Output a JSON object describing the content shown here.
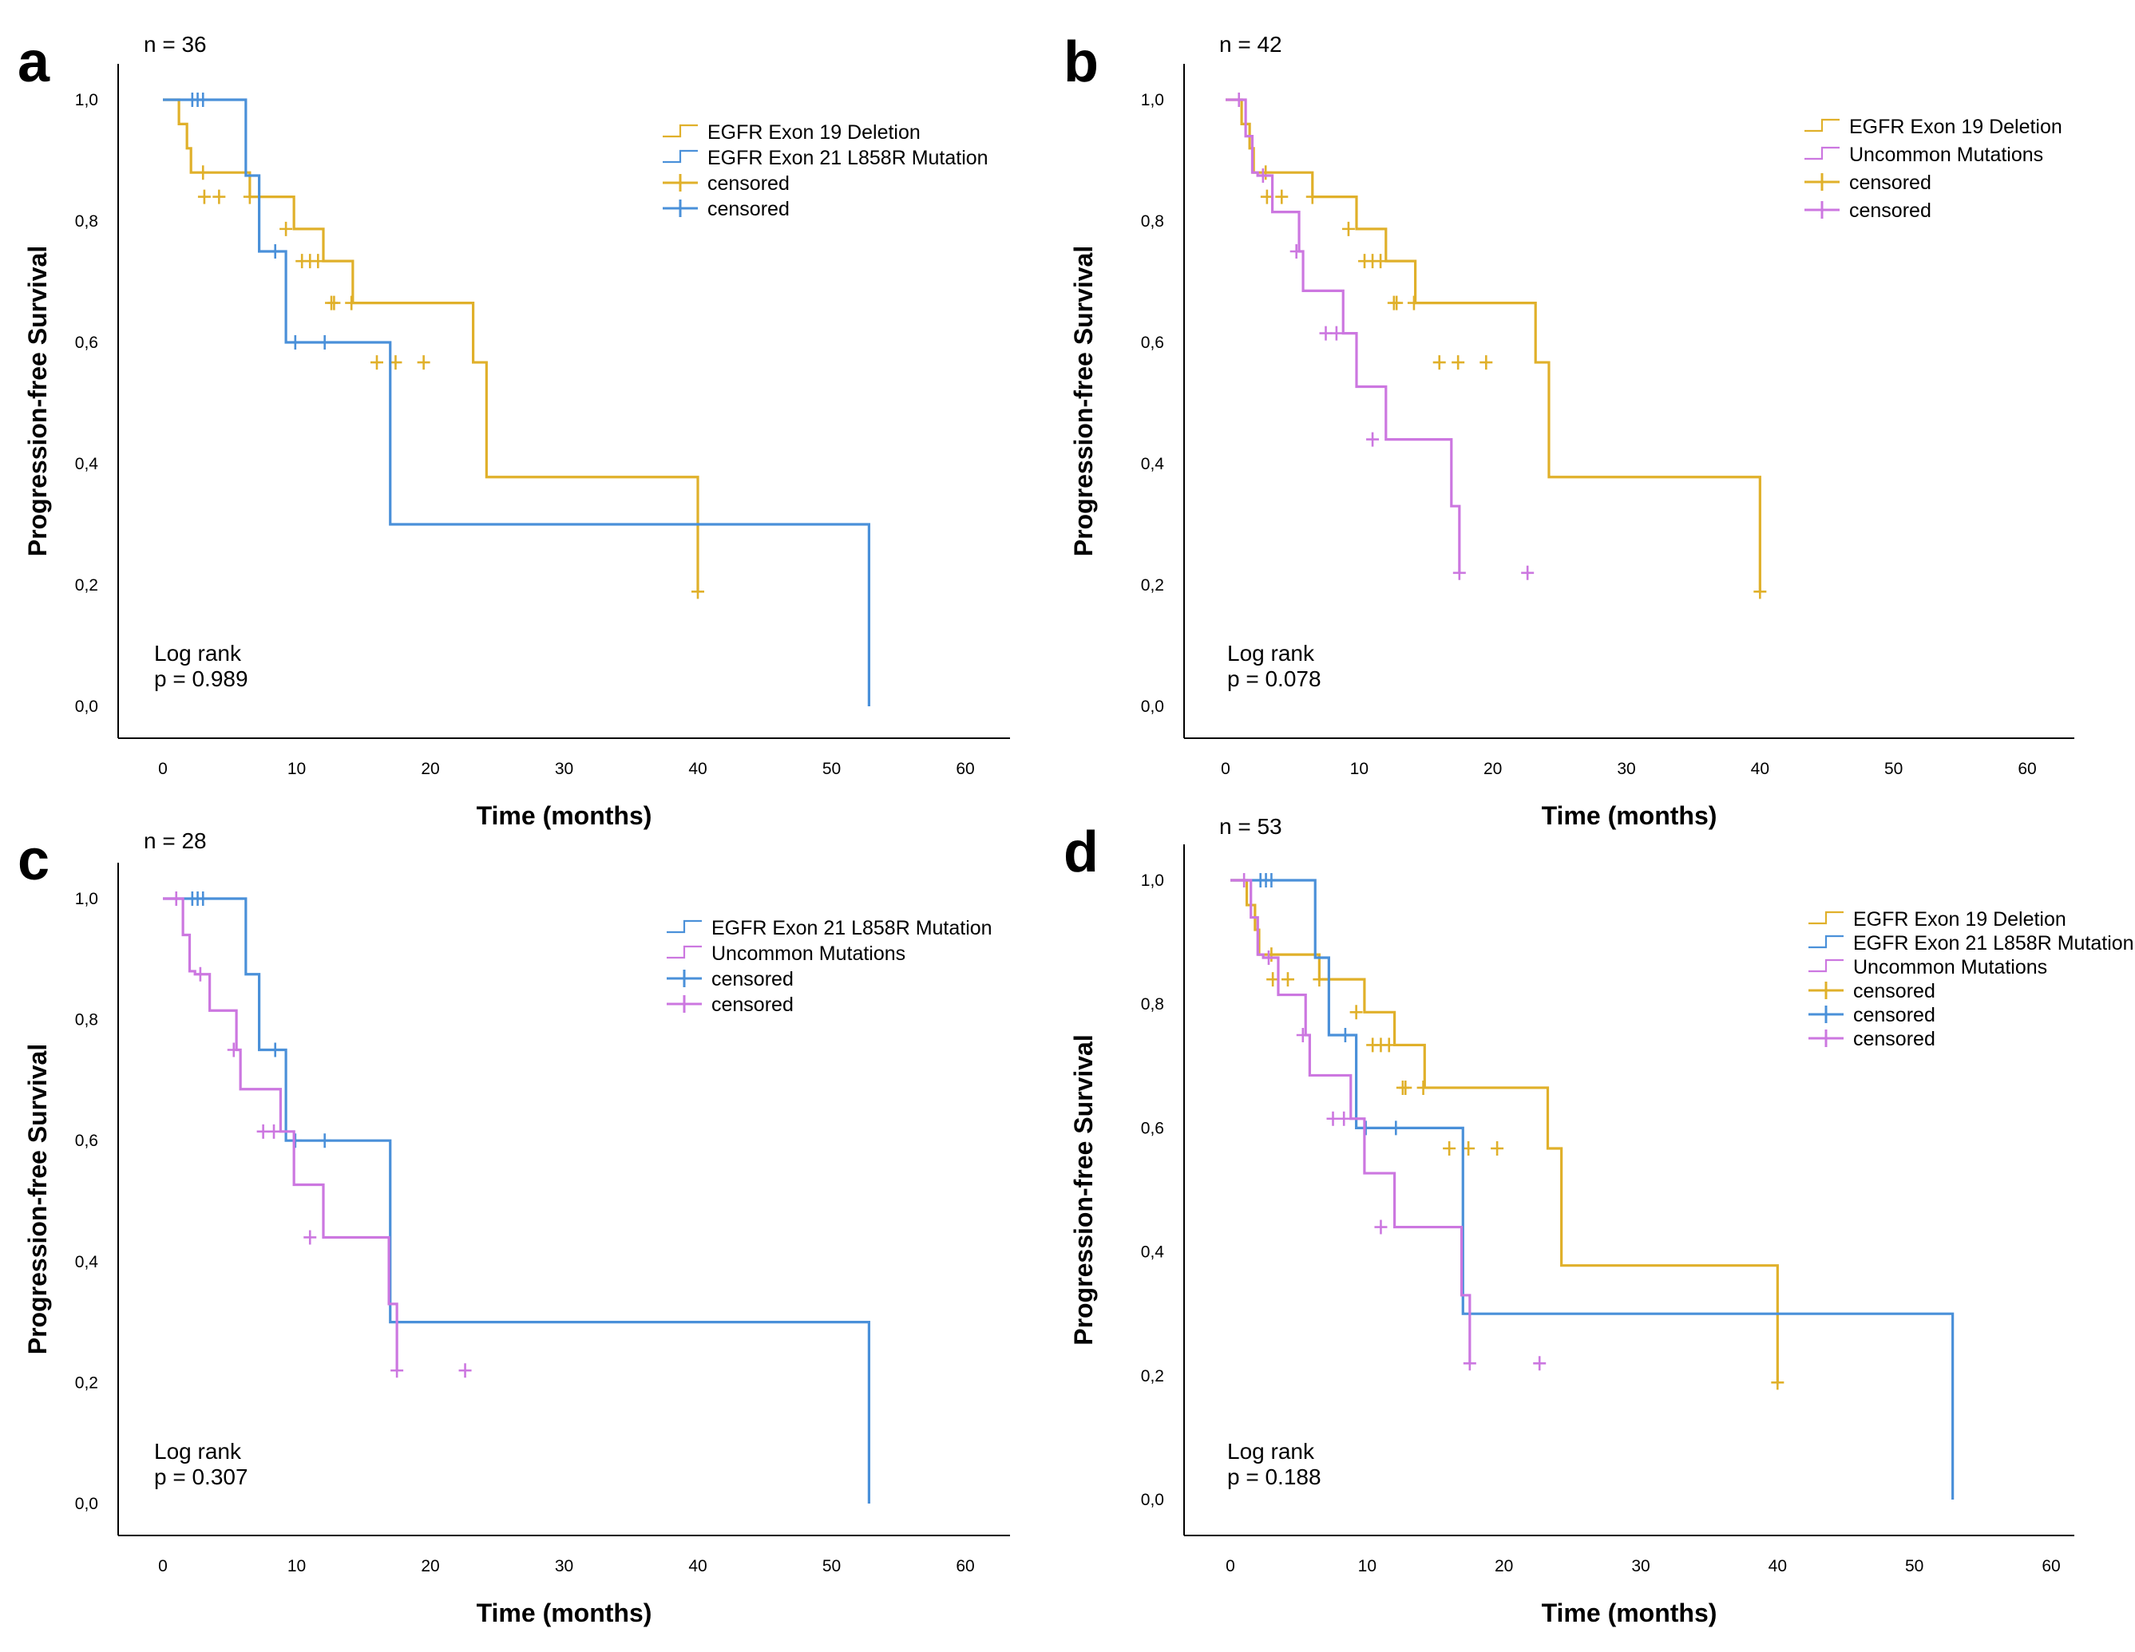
{
  "colors": {
    "egfr_exon19_deletion": "#E0B02A",
    "egfr_exon21_l858r": "#4A90D9",
    "uncommon_mutations": "#CC77E0"
  },
  "chart_data": [
    {
      "panel": "a",
      "type": "line",
      "step": true,
      "n_label": "n = 36",
      "xlabel": "Time (months)",
      "ylabel": "Progression-free Survival",
      "xlim": [
        0,
        60
      ],
      "ylim": [
        0,
        1
      ],
      "xticks": [
        "0",
        "10",
        "20",
        "30",
        "40",
        "50",
        "60"
      ],
      "yticks": [
        "0,0",
        "0,2",
        "0,4",
        "0,6",
        "0,8",
        "1,0"
      ],
      "grid": false,
      "legend_position": "top-right",
      "legend": [
        {
          "label": "EGFR Exon 19 Deletion",
          "kind": "line",
          "color_key": "egfr_exon19_deletion"
        },
        {
          "label": "EGFR Exon 21 L858R Mutation",
          "kind": "line",
          "color_key": "egfr_exon21_l858r"
        },
        {
          "label": "censored",
          "kind": "censor",
          "color_key": "egfr_exon19_deletion"
        },
        {
          "label": "censored",
          "kind": "censor",
          "color_key": "egfr_exon21_l858r"
        }
      ],
      "stats": [
        "Log rank",
        "p = 0.989"
      ],
      "series": [
        {
          "name": "EGFR Exon 19 Deletion",
          "color_key": "egfr_exon19_deletion",
          "x": [
            0,
            1.2,
            1.8,
            2.1,
            6.5,
            9.8,
            12.0,
            14.2,
            23.2,
            24.2,
            40.0
          ],
          "y": [
            1.0,
            0.96,
            0.92,
            0.88,
            0.84,
            0.787,
            0.734,
            0.665,
            0.567,
            0.378,
            0.189
          ],
          "censored": [
            [
              3.0,
              0.88
            ],
            [
              3.1,
              0.84
            ],
            [
              4.2,
              0.84
            ],
            [
              6.5,
              0.84
            ],
            [
              9.2,
              0.787
            ],
            [
              10.4,
              0.734
            ],
            [
              11.0,
              0.734
            ],
            [
              11.6,
              0.734
            ],
            [
              12.6,
              0.665
            ],
            [
              12.8,
              0.665
            ],
            [
              14.1,
              0.665
            ],
            [
              16.0,
              0.567
            ],
            [
              17.4,
              0.567
            ],
            [
              19.5,
              0.567
            ],
            [
              40.0,
              0.189
            ]
          ]
        },
        {
          "name": "EGFR Exon 21 L858R Mutation",
          "color_key": "egfr_exon21_l858r",
          "x": [
            0,
            6.2,
            7.2,
            9.2,
            17.0,
            52.8
          ],
          "y": [
            1.0,
            0.875,
            0.75,
            0.6,
            0.3,
            0.0
          ],
          "censored": [
            [
              2.2,
              1.0
            ],
            [
              2.6,
              1.0
            ],
            [
              3.0,
              1.0
            ],
            [
              8.4,
              0.75
            ],
            [
              9.9,
              0.6
            ],
            [
              12.1,
              0.6
            ]
          ]
        }
      ]
    },
    {
      "panel": "b",
      "type": "line",
      "step": true,
      "n_label": "n = 42",
      "xlabel": "Time (months)",
      "ylabel": "Progression-free Survival",
      "xlim": [
        0,
        60
      ],
      "ylim": [
        0,
        1
      ],
      "xticks": [
        "0",
        "10",
        "20",
        "30",
        "40",
        "50",
        "60"
      ],
      "yticks": [
        "0,0",
        "0,2",
        "0,4",
        "0,6",
        "0,8",
        "1,0"
      ],
      "grid": false,
      "legend_position": "top-right",
      "legend": [
        {
          "label": "EGFR Exon 19 Deletion",
          "kind": "line",
          "color_key": "egfr_exon19_deletion"
        },
        {
          "label": "Uncommon Mutations",
          "kind": "line",
          "color_key": "uncommon_mutations"
        },
        {
          "label": "censored",
          "kind": "censor",
          "color_key": "egfr_exon19_deletion"
        },
        {
          "label": "censored",
          "kind": "censor",
          "color_key": "uncommon_mutations"
        }
      ],
      "stats": [
        "Log rank",
        "p = 0.078"
      ],
      "series": [
        {
          "name": "EGFR Exon 19 Deletion",
          "color_key": "egfr_exon19_deletion",
          "x": [
            0,
            1.2,
            1.8,
            2.1,
            6.5,
            9.8,
            12.0,
            14.2,
            23.2,
            24.2,
            40.0
          ],
          "y": [
            1.0,
            0.96,
            0.92,
            0.88,
            0.84,
            0.787,
            0.734,
            0.665,
            0.567,
            0.378,
            0.189
          ],
          "censored": [
            [
              3.0,
              0.88
            ],
            [
              3.1,
              0.84
            ],
            [
              4.2,
              0.84
            ],
            [
              6.5,
              0.84
            ],
            [
              9.2,
              0.787
            ],
            [
              10.4,
              0.734
            ],
            [
              11.0,
              0.734
            ],
            [
              11.6,
              0.734
            ],
            [
              12.6,
              0.665
            ],
            [
              12.8,
              0.665
            ],
            [
              14.1,
              0.665
            ],
            [
              16.0,
              0.567
            ],
            [
              17.4,
              0.567
            ],
            [
              19.5,
              0.567
            ],
            [
              40.0,
              0.189
            ]
          ]
        },
        {
          "name": "Uncommon Mutations",
          "color_key": "uncommon_mutations",
          "x": [
            0,
            1.5,
            2.0,
            2.4,
            3.5,
            5.5,
            5.8,
            8.8,
            9.8,
            12.0,
            16.9,
            17.5
          ],
          "y": [
            1.0,
            0.94,
            0.88,
            0.875,
            0.815,
            0.75,
            0.685,
            0.615,
            0.527,
            0.44,
            0.33,
            0.22
          ],
          "censored": [
            [
              1.0,
              1.0
            ],
            [
              2.8,
              0.875
            ],
            [
              5.3,
              0.75
            ],
            [
              7.5,
              0.615
            ],
            [
              8.3,
              0.615
            ],
            [
              11.0,
              0.44
            ],
            [
              17.5,
              0.22
            ],
            [
              22.6,
              0.22
            ]
          ]
        }
      ]
    },
    {
      "panel": "c",
      "type": "line",
      "step": true,
      "n_label": "n = 28",
      "xlabel": "Time (months)",
      "ylabel": "Progression-free Survival",
      "xlim": [
        0,
        60
      ],
      "ylim": [
        0,
        1
      ],
      "xticks": [
        "0",
        "10",
        "20",
        "30",
        "40",
        "50",
        "60"
      ],
      "yticks": [
        "0,0",
        "0,2",
        "0,4",
        "0,6",
        "0,8",
        "1,0"
      ],
      "grid": false,
      "legend_position": "top-right",
      "legend": [
        {
          "label": "EGFR Exon 21 L858R Mutation",
          "kind": "line",
          "color_key": "egfr_exon21_l858r"
        },
        {
          "label": "Uncommon Mutations",
          "kind": "line",
          "color_key": "uncommon_mutations"
        },
        {
          "label": "censored",
          "kind": "censor",
          "color_key": "egfr_exon21_l858r"
        },
        {
          "label": "censored",
          "kind": "censor",
          "color_key": "uncommon_mutations"
        }
      ],
      "stats": [
        "Log rank",
        "p = 0.307"
      ],
      "series": [
        {
          "name": "EGFR Exon 21 L858R Mutation",
          "color_key": "egfr_exon21_l858r",
          "x": [
            0,
            6.2,
            7.2,
            9.2,
            17.0,
            52.8
          ],
          "y": [
            1.0,
            0.875,
            0.75,
            0.6,
            0.3,
            0.0
          ],
          "censored": [
            [
              2.2,
              1.0
            ],
            [
              2.6,
              1.0
            ],
            [
              3.0,
              1.0
            ],
            [
              8.4,
              0.75
            ],
            [
              9.9,
              0.6
            ],
            [
              12.1,
              0.6
            ]
          ]
        },
        {
          "name": "Uncommon Mutations",
          "color_key": "uncommon_mutations",
          "x": [
            0,
            1.5,
            2.0,
            2.4,
            3.5,
            5.5,
            5.8,
            8.8,
            9.8,
            12.0,
            16.9,
            17.5
          ],
          "y": [
            1.0,
            0.94,
            0.88,
            0.875,
            0.815,
            0.75,
            0.685,
            0.615,
            0.527,
            0.44,
            0.33,
            0.22
          ],
          "censored": [
            [
              1.0,
              1.0
            ],
            [
              2.8,
              0.875
            ],
            [
              5.3,
              0.75
            ],
            [
              7.5,
              0.615
            ],
            [
              8.3,
              0.615
            ],
            [
              11.0,
              0.44
            ],
            [
              17.5,
              0.22
            ],
            [
              22.6,
              0.22
            ]
          ]
        }
      ]
    },
    {
      "panel": "d",
      "type": "line",
      "step": true,
      "n_label": "n = 53",
      "xlabel": "Time (months)",
      "ylabel": "Progression-free Survival",
      "xlim": [
        0,
        60
      ],
      "ylim": [
        0,
        1
      ],
      "xticks": [
        "0",
        "10",
        "20",
        "30",
        "40",
        "50",
        "60"
      ],
      "yticks": [
        "0,0",
        "0,2",
        "0,4",
        "0,6",
        "0,8",
        "1,0"
      ],
      "grid": false,
      "legend_position": "top-right",
      "legend": [
        {
          "label": "EGFR Exon 19 Deletion",
          "kind": "line",
          "color_key": "egfr_exon19_deletion"
        },
        {
          "label": "EGFR Exon 21 L858R Mutation",
          "kind": "line",
          "color_key": "egfr_exon21_l858r"
        },
        {
          "label": "Uncommon Mutations",
          "kind": "line",
          "color_key": "uncommon_mutations"
        },
        {
          "label": "censored",
          "kind": "censor",
          "color_key": "egfr_exon19_deletion"
        },
        {
          "label": "censored",
          "kind": "censor",
          "color_key": "egfr_exon21_l858r"
        },
        {
          "label": "censored",
          "kind": "censor",
          "color_key": "uncommon_mutations"
        }
      ],
      "stats": [
        "Log rank",
        "p = 0.188"
      ],
      "series": [
        {
          "name": "EGFR Exon 19 Deletion",
          "color_key": "egfr_exon19_deletion",
          "x": [
            0,
            1.2,
            1.8,
            2.1,
            6.5,
            9.8,
            12.0,
            14.2,
            23.2,
            24.2,
            40.0
          ],
          "y": [
            1.0,
            0.96,
            0.92,
            0.88,
            0.84,
            0.787,
            0.734,
            0.665,
            0.567,
            0.378,
            0.189
          ],
          "censored": [
            [
              3.0,
              0.88
            ],
            [
              3.1,
              0.84
            ],
            [
              4.2,
              0.84
            ],
            [
              6.5,
              0.84
            ],
            [
              9.2,
              0.787
            ],
            [
              10.4,
              0.734
            ],
            [
              11.0,
              0.734
            ],
            [
              11.6,
              0.734
            ],
            [
              12.6,
              0.665
            ],
            [
              12.8,
              0.665
            ],
            [
              14.1,
              0.665
            ],
            [
              16.0,
              0.567
            ],
            [
              17.4,
              0.567
            ],
            [
              19.5,
              0.567
            ],
            [
              40.0,
              0.189
            ]
          ]
        },
        {
          "name": "EGFR Exon 21 L858R Mutation",
          "color_key": "egfr_exon21_l858r",
          "x": [
            0,
            6.2,
            7.2,
            9.2,
            17.0,
            52.8
          ],
          "y": [
            1.0,
            0.875,
            0.75,
            0.6,
            0.3,
            0.0
          ],
          "censored": [
            [
              2.2,
              1.0
            ],
            [
              2.6,
              1.0
            ],
            [
              3.0,
              1.0
            ],
            [
              8.4,
              0.75
            ],
            [
              9.9,
              0.6
            ],
            [
              12.1,
              0.6
            ]
          ]
        },
        {
          "name": "Uncommon Mutations",
          "color_key": "uncommon_mutations",
          "x": [
            0,
            1.5,
            2.0,
            2.4,
            3.5,
            5.5,
            5.8,
            8.8,
            9.8,
            12.0,
            16.9,
            17.5
          ],
          "y": [
            1.0,
            0.94,
            0.88,
            0.875,
            0.815,
            0.75,
            0.685,
            0.615,
            0.527,
            0.44,
            0.33,
            0.22
          ],
          "censored": [
            [
              1.0,
              1.0
            ],
            [
              2.8,
              0.875
            ],
            [
              5.3,
              0.75
            ],
            [
              7.5,
              0.615
            ],
            [
              8.3,
              0.615
            ],
            [
              11.0,
              0.44
            ],
            [
              17.5,
              0.22
            ],
            [
              22.6,
              0.22
            ]
          ]
        }
      ]
    }
  ]
}
